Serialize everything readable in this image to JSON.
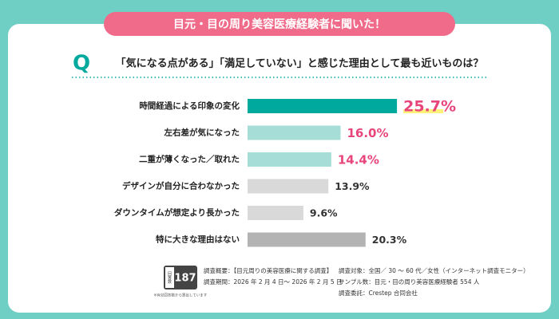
{
  "chart_data": {
    "type": "bar",
    "orientation": "horizontal",
    "banner": "目元・目の周り美容医療経験者に聞いた！",
    "q_marker": "Q",
    "title": "「気になる点がある」「満足していない」と感じた理由として最も近いものは？",
    "categories": [
      "時間経過による印象の変化",
      "左右差が気になった",
      "二重が薄くなった／取れた",
      "デザインが自分に合わなかった",
      "ダウンタイムが想定より長かった",
      "特に大きな理由はない"
    ],
    "values": [
      25.7,
      16.0,
      14.4,
      13.9,
      9.6,
      20.3
    ],
    "value_labels": [
      "25.7%",
      "16.0%",
      "14.4%",
      "13.9%",
      "9.6%",
      "20.3%"
    ],
    "colors": [
      "#00a99d",
      "#a6ddd6",
      "#a6ddd6",
      "#d9d9d9",
      "#d9d9d9",
      "#b3b3b3"
    ],
    "label_colors": [
      "#e8457a",
      "#e8457a",
      "#e8457a",
      "#333333",
      "#333333",
      "#333333"
    ]
  },
  "footer": {
    "badge_label": "回答数",
    "badge_value": "187",
    "badge_note": "※有効回答数から算出しています",
    "lines": [
      "調査概要：【目元周りの美容医療に関する調査】",
      "調査期間：2026 年 2 月 4 日～ 2026 年 2 月 5 日",
      "調査対象：全国／ 30 ～ 60 代／女性（インターネット調査モニター）",
      "サンプル数：目元・目の周り美容医療経験者 554 人",
      "調査委託：Crestep 合同会社"
    ]
  }
}
